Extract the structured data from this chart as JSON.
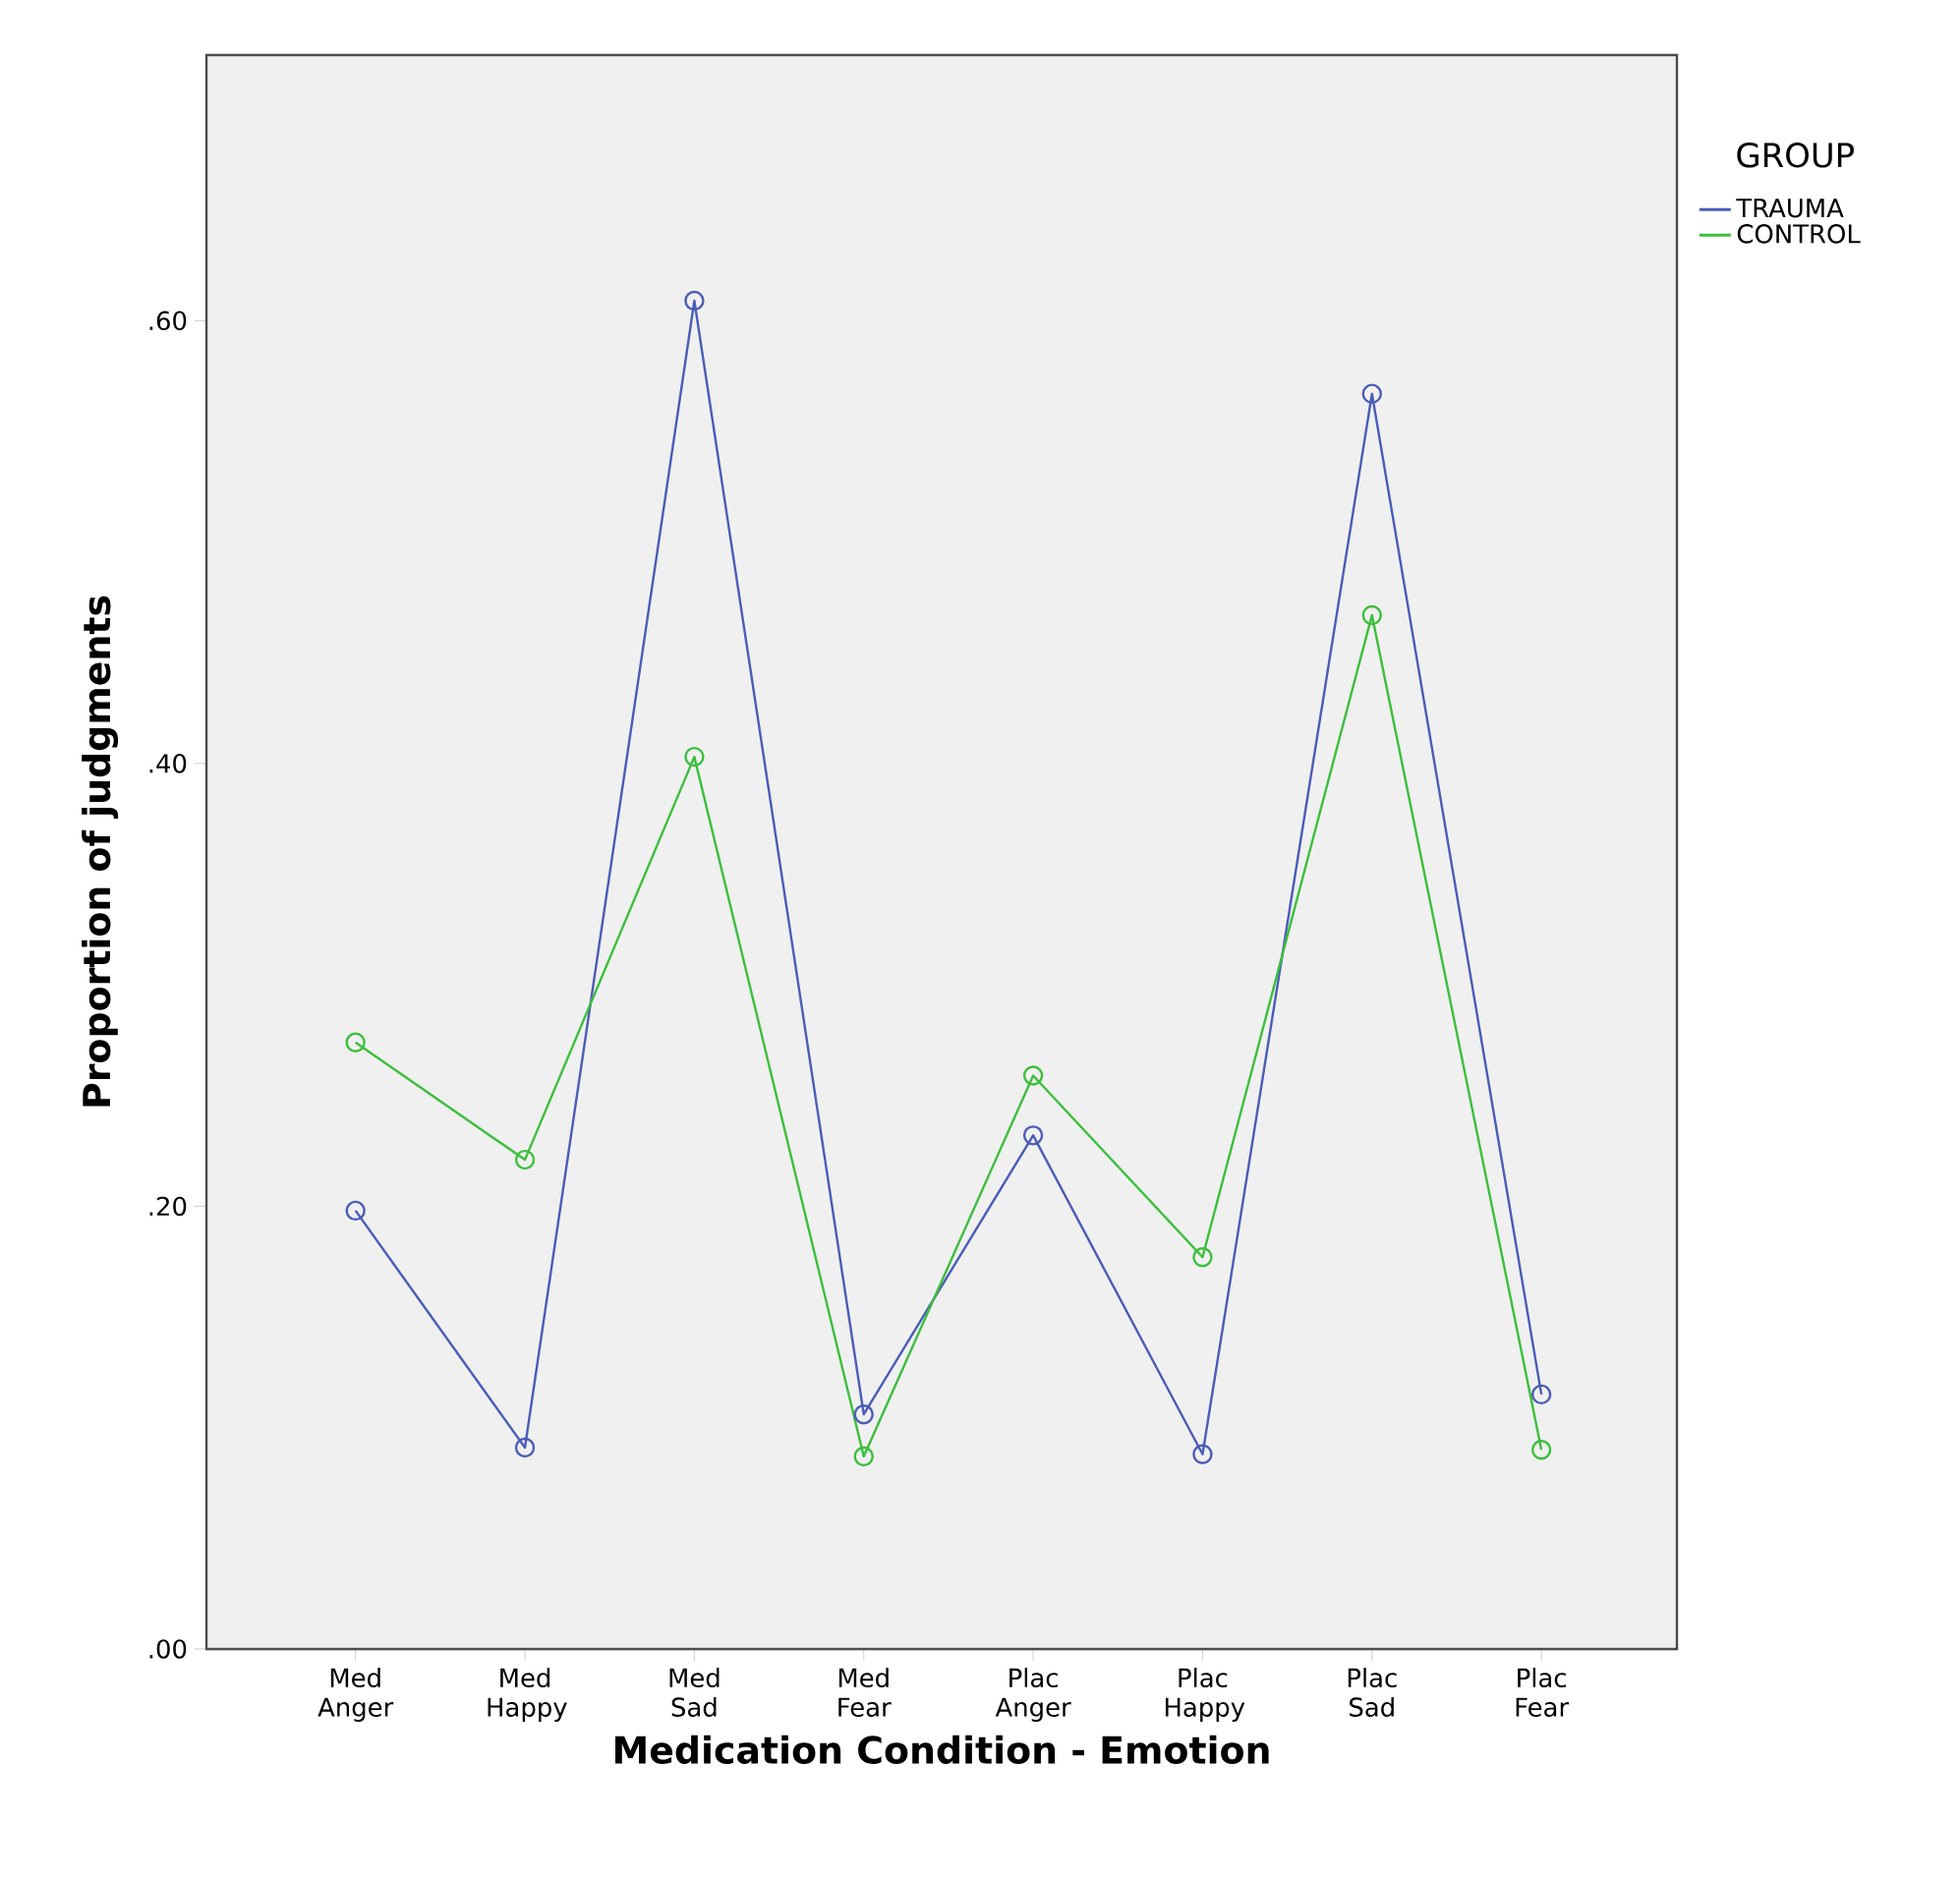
{
  "chart_data": {
    "type": "line",
    "xlabel": "Medication Condition - Emotion",
    "ylabel": "Proportion of judgments",
    "legend_title": "GROUP",
    "legend": "top right",
    "marker": "circle",
    "line_style": "solid",
    "categories": [
      "Med Anger",
      "Med Happy",
      "Med Sad",
      "Med Fear",
      "Plac Anger",
      "Plac Happy",
      "Plac Sad",
      "Plac Fear"
    ],
    "ylim": [
      0,
      0.72
    ],
    "yticks": [
      {
        "value": 0,
        "label": ".00"
      },
      {
        "value": 0.2,
        "label": ".20"
      },
      {
        "value": 0.4,
        "label": ".40"
      },
      {
        "value": 0.6,
        "label": ".60"
      }
    ],
    "series": [
      {
        "name": "TRAUMA",
        "color": "#4a5cb8",
        "values": [
          0.198,
          0.091,
          0.609,
          0.106,
          0.232,
          0.088,
          0.567,
          0.115
        ]
      },
      {
        "name": "CONTROL",
        "color": "#3cbf3c",
        "values": [
          0.274,
          0.221,
          0.403,
          0.087,
          0.259,
          0.177,
          0.467,
          0.09
        ]
      }
    ]
  }
}
